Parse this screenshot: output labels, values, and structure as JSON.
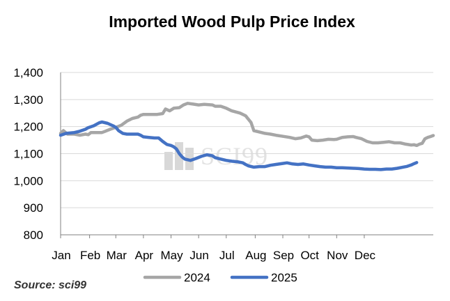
{
  "chart_data": {
    "type": "line",
    "title": "Imported Wood Pulp Price Index",
    "xlabel": "",
    "ylabel": "",
    "ylim": [
      800,
      1400
    ],
    "yticks": [
      "800",
      "900",
      "1,000",
      "1,100",
      "1,200",
      "1,300",
      "1,400"
    ],
    "ytick_values": [
      800,
      900,
      1000,
      1100,
      1200,
      1300,
      1400
    ],
    "months": [
      "Jan",
      "Feb",
      "Mar",
      "Apr",
      "May",
      "Jun",
      "Jul",
      "Aug",
      "Sep",
      "Oct",
      "Nov",
      "Dec"
    ],
    "legend_position": "bottom",
    "series": [
      {
        "name": "2024",
        "color": "#a6a6a6",
        "points": [
          [
            0.0,
            1175
          ],
          [
            0.1,
            1185
          ],
          [
            0.25,
            1172
          ],
          [
            0.5,
            1172
          ],
          [
            0.7,
            1168
          ],
          [
            0.9,
            1172
          ],
          [
            1.0,
            1170
          ],
          [
            1.1,
            1178
          ],
          [
            1.3,
            1178
          ],
          [
            1.5,
            1178
          ],
          [
            1.6,
            1182
          ],
          [
            1.8,
            1190
          ],
          [
            2.0,
            1197
          ],
          [
            2.2,
            1205
          ],
          [
            2.4,
            1220
          ],
          [
            2.6,
            1230
          ],
          [
            2.8,
            1235
          ],
          [
            2.9,
            1242
          ],
          [
            3.0,
            1245
          ],
          [
            3.2,
            1245
          ],
          [
            3.5,
            1245
          ],
          [
            3.7,
            1248
          ],
          [
            3.8,
            1265
          ],
          [
            3.95,
            1258
          ],
          [
            4.1,
            1268
          ],
          [
            4.3,
            1270
          ],
          [
            4.45,
            1280
          ],
          [
            4.6,
            1286
          ],
          [
            4.8,
            1283
          ],
          [
            5.0,
            1280
          ],
          [
            5.2,
            1282
          ],
          [
            5.5,
            1280
          ],
          [
            5.6,
            1275
          ],
          [
            5.8,
            1275
          ],
          [
            6.0,
            1268
          ],
          [
            6.2,
            1258
          ],
          [
            6.5,
            1250
          ],
          [
            6.7,
            1240
          ],
          [
            6.9,
            1215
          ],
          [
            7.0,
            1185
          ],
          [
            7.2,
            1180
          ],
          [
            7.4,
            1175
          ],
          [
            7.6,
            1172
          ],
          [
            7.8,
            1168
          ],
          [
            8.0,
            1165
          ],
          [
            8.3,
            1160
          ],
          [
            8.5,
            1155
          ],
          [
            8.7,
            1158
          ],
          [
            8.9,
            1165
          ],
          [
            9.0,
            1162
          ],
          [
            9.1,
            1150
          ],
          [
            9.3,
            1148
          ],
          [
            9.5,
            1150
          ],
          [
            9.7,
            1153
          ],
          [
            9.9,
            1152
          ],
          [
            10.0,
            1153
          ],
          [
            10.2,
            1160
          ],
          [
            10.4,
            1162
          ],
          [
            10.6,
            1163
          ],
          [
            10.7,
            1160
          ],
          [
            10.9,
            1155
          ],
          [
            11.1,
            1145
          ],
          [
            11.3,
            1140
          ],
          [
            11.5,
            1140
          ],
          [
            11.7,
            1142
          ],
          [
            11.9,
            1144
          ],
          [
            12.1,
            1140
          ],
          [
            12.3,
            1140
          ],
          [
            12.5,
            1135
          ],
          [
            12.7,
            1132
          ],
          [
            12.8,
            1133
          ],
          [
            12.9,
            1130
          ],
          [
            13.0,
            1135
          ],
          [
            13.1,
            1138
          ],
          [
            13.2,
            1155
          ],
          [
            13.3,
            1160
          ],
          [
            13.4,
            1163
          ],
          [
            13.5,
            1167
          ]
        ]
      },
      {
        "name": "2025",
        "color": "#4472c4",
        "points": [
          [
            0.0,
            1168
          ],
          [
            0.2,
            1175
          ],
          [
            0.5,
            1178
          ],
          [
            0.7,
            1183
          ],
          [
            0.9,
            1190
          ],
          [
            1.0,
            1196
          ],
          [
            1.2,
            1203
          ],
          [
            1.4,
            1214
          ],
          [
            1.5,
            1217
          ],
          [
            1.7,
            1212
          ],
          [
            1.9,
            1203
          ],
          [
            2.0,
            1197
          ],
          [
            2.1,
            1185
          ],
          [
            2.25,
            1175
          ],
          [
            2.4,
            1172
          ],
          [
            2.6,
            1172
          ],
          [
            2.8,
            1172
          ],
          [
            2.9,
            1168
          ],
          [
            3.0,
            1162
          ],
          [
            3.2,
            1160
          ],
          [
            3.4,
            1158
          ],
          [
            3.55,
            1158
          ],
          [
            3.7,
            1145
          ],
          [
            3.85,
            1134
          ],
          [
            4.0,
            1130
          ],
          [
            4.1,
            1125
          ],
          [
            4.2,
            1117
          ],
          [
            4.3,
            1100
          ],
          [
            4.4,
            1088
          ],
          [
            4.5,
            1080
          ],
          [
            4.7,
            1075
          ],
          [
            4.9,
            1082
          ],
          [
            5.1,
            1090
          ],
          [
            5.3,
            1096
          ],
          [
            5.5,
            1092
          ],
          [
            5.6,
            1085
          ],
          [
            5.8,
            1080
          ],
          [
            6.0,
            1075
          ],
          [
            6.2,
            1072
          ],
          [
            6.4,
            1070
          ],
          [
            6.6,
            1066
          ],
          [
            6.7,
            1060
          ],
          [
            6.8,
            1055
          ],
          [
            7.0,
            1050
          ],
          [
            7.2,
            1052
          ],
          [
            7.4,
            1052
          ],
          [
            7.6,
            1057
          ],
          [
            7.8,
            1060
          ],
          [
            8.0,
            1063
          ],
          [
            8.2,
            1066
          ],
          [
            8.4,
            1062
          ],
          [
            8.6,
            1060
          ],
          [
            8.8,
            1062
          ],
          [
            9.0,
            1058
          ],
          [
            9.2,
            1055
          ],
          [
            9.4,
            1052
          ],
          [
            9.6,
            1050
          ],
          [
            9.8,
            1050
          ],
          [
            10.0,
            1048
          ],
          [
            10.2,
            1048
          ],
          [
            10.4,
            1047
          ],
          [
            10.6,
            1046
          ],
          [
            10.8,
            1045
          ],
          [
            11.0,
            1043
          ],
          [
            11.2,
            1042
          ],
          [
            11.4,
            1042
          ],
          [
            11.6,
            1041
          ],
          [
            11.8,
            1043
          ],
          [
            12.0,
            1043
          ],
          [
            12.2,
            1046
          ],
          [
            12.4,
            1050
          ],
          [
            12.55,
            1053
          ],
          [
            12.7,
            1058
          ],
          [
            12.8,
            1063
          ],
          [
            12.9,
            1067
          ]
        ]
      }
    ],
    "source": "Source: sci99",
    "watermark": "SCI99"
  }
}
